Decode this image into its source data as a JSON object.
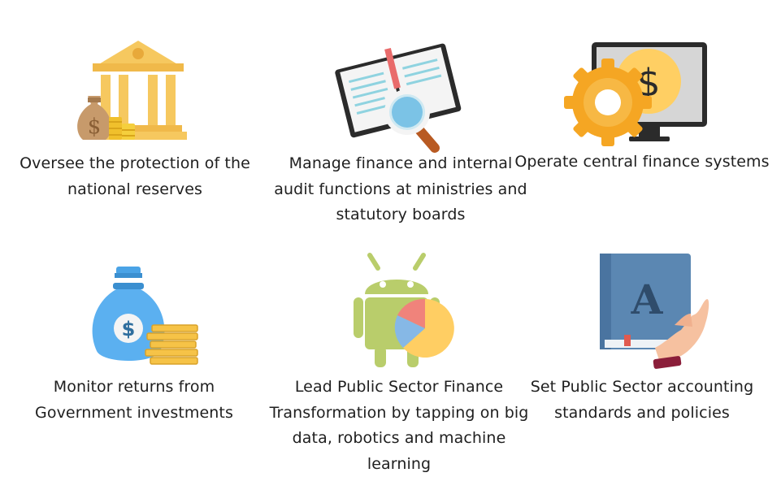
{
  "cards": [
    {
      "icon": "bank-money-icon",
      "caption": "Oversee the protection of the national reserves"
    },
    {
      "icon": "audit-book-magnifier-icon",
      "caption": "Manage finance and internal audit functions at ministries and statutory boards"
    },
    {
      "icon": "gear-monitor-dollar-icon",
      "caption": "Operate central finance systems"
    },
    {
      "icon": "money-bag-coins-icon",
      "caption": "Monitor returns from Government investments"
    },
    {
      "icon": "android-robot-pie-chart-icon",
      "caption": "Lead Public Sector Finance Transformation by tapping on big data, robotics and machine learning"
    },
    {
      "icon": "accounting-book-hand-icon",
      "caption": "Set Public Sector accounting standards and policies"
    }
  ]
}
